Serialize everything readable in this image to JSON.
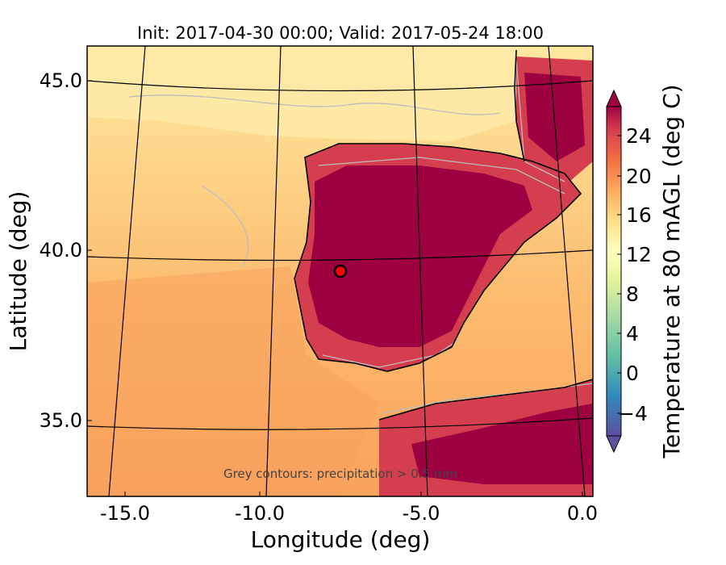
{
  "map": {
    "title": "Init: 2017-04-30 00:00; Valid: 2017-05-24 18:00",
    "xlabel": "Longitude (deg)",
    "ylabel": "Latitude (deg)",
    "annotation": "Grey contours: precipitation > 0.5 mm",
    "lon_range": [
      -16,
      0
    ],
    "lat_range": [
      33,
      46
    ],
    "x_ticks": [
      "-15.0",
      "-10.0",
      "-5.0",
      "0.0"
    ],
    "y_ticks": [
      "45.0",
      "40.0",
      "35.0"
    ],
    "marker": {
      "label": "site",
      "lon": -7.5,
      "lat": 39.4,
      "color": "#ff0000"
    }
  },
  "colorbar": {
    "label": "Temperature at 80 mAGL (deg C)",
    "ticks": [
      "24",
      "20",
      "16",
      "12",
      "8",
      "4",
      "0",
      "−4"
    ],
    "range": [
      -6,
      27
    ],
    "colormap": "Spectral_r",
    "extend": "both"
  },
  "palette": {
    "sea_cool": "#fde9a0",
    "sea_mid": "#fdc97a",
    "sea_warm": "#f9a55e",
    "land_hot": "#9e0142",
    "land_warm": "#d53e4f",
    "coast": "#000000",
    "grey_contour": "#bdbdbd"
  }
}
